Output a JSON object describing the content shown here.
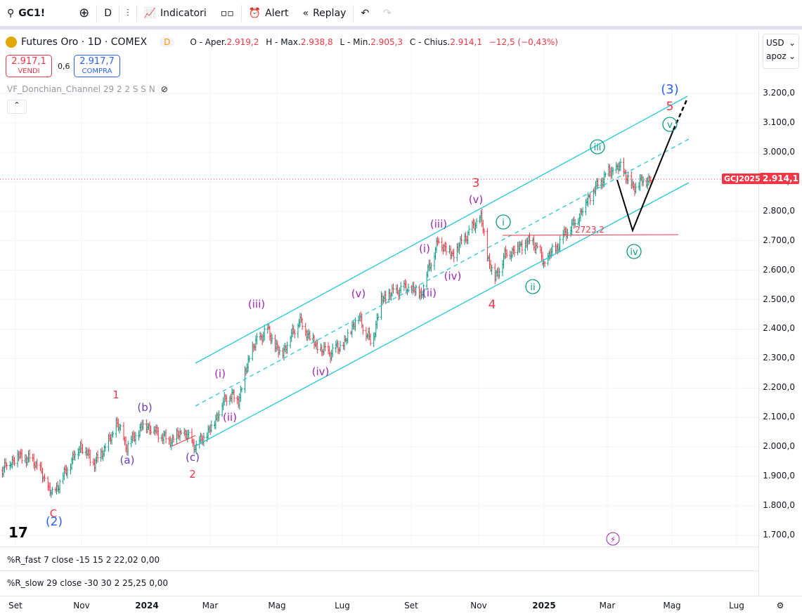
{
  "toolbar": {
    "symbol": "GC1!",
    "interval": "D",
    "indicators": "Indicatori",
    "alert": "Alert",
    "replay": "Replay"
  },
  "legend": {
    "title": "Futures Oro · 1D · COMEX",
    "badge": "D",
    "open_label": "O - Aper.",
    "open": "2.919,2",
    "high_label": "H - Max.",
    "high": "2.938,8",
    "low_label": "L - Min.",
    "low": "2.905,3",
    "close_label": "C - Chius.",
    "close": "2.914,1",
    "change": "−12,5 (−0,43%)"
  },
  "trade": {
    "sell_price": "2.917,1",
    "sell_label": "VENDI",
    "spread": "0,6",
    "buy_price": "2.917,7",
    "buy_label": "COMPRA"
  },
  "indicator": "VF_Donchian_Channel 29 2 2 S S N",
  "axis": {
    "currency": "USD",
    "scale": "apoz",
    "ticks": [
      "3.200,0",
      "3.100,0",
      "3.000,0",
      "2.900,0",
      "2.800,0",
      "2.700,0",
      "2.600,0",
      "2.500,0",
      "2.400,0",
      "2.300,0",
      "2.200,0",
      "2.100,0",
      "2.000,0",
      "1.900,0",
      "1.800,0",
      "1.700,0"
    ],
    "last_symbol": "GCJ2025",
    "last_price": "2.914,1"
  },
  "panes": [
    {
      "label": "%R_fast 7 close -15 15 2",
      "v1": "22,02",
      "v2": "0,00"
    },
    {
      "label": "%R_slow 29 close -30 30 2",
      "v1": "25,25",
      "v2": "0,00"
    }
  ],
  "time_labels": [
    "Set",
    "Nov",
    "2024",
    "Mar",
    "Mag",
    "Lug",
    "Set",
    "Nov",
    "2025",
    "Mar",
    "Mag",
    "Lug"
  ],
  "level_label": "2723,2",
  "waves": {
    "C": "C",
    "w2": "(2)",
    "w1": "1",
    "a": "(a)",
    "b": "(b)",
    "c": "(c)",
    "w2b": "2",
    "i1": "(i)",
    "ii1": "(ii)",
    "iii1": "(iii)",
    "iv1": "(iv)",
    "v1": "(v)",
    "i2": "(i)",
    "ii2": "(ii)",
    "iii2": "(iii)",
    "iv2": "(iv)",
    "v2": "(v)",
    "w3": "3",
    "w4": "4",
    "ti": "i",
    "tii": "ii",
    "tiii": "iii",
    "tiv": "iv",
    "tv": "v",
    "w5": "5",
    "W3": "(3)"
  },
  "colors": {
    "up": "#089981",
    "down": "#f23645",
    "channel": "#26c6da",
    "wave_red": "#f23645",
    "wave_purple": "#9c27b0",
    "wave_teal": "#089981",
    "wave_blue": "#2962ff"
  },
  "chart_data": {
    "type": "ohlc",
    "title": "Futures Oro · 1D · COMEX",
    "x_unit": "days from 2023-09-01",
    "ylim": [
      1700,
      3200
    ],
    "x": [
      -14,
      2,
      18,
      34,
      44,
      60,
      73,
      90,
      93,
      103,
      119,
      142,
      155,
      167,
      180,
      196,
      206,
      218,
      232,
      245,
      262,
      280,
      291,
      304,
      316,
      329,
      338,
      352,
      361,
      375,
      381,
      391,
      404,
      417,
      430,
      436,
      443,
      452,
      465,
      478,
      489,
      495,
      501,
      506,
      517,
      530,
      547,
      560,
      570,
      578,
      588
    ],
    "close": [
      1920,
      1970,
      1950,
      1836,
      1900,
      2007,
      1943,
      2040,
      2086,
      2000,
      2080,
      2020,
      2050,
      2000,
      2060,
      2180,
      2160,
      2330,
      2400,
      2310,
      2430,
      2330,
      2320,
      2350,
      2450,
      2350,
      2500,
      2530,
      2540,
      2520,
      2600,
      2700,
      2650,
      2720,
      2780,
      2650,
      2570,
      2650,
      2680,
      2700,
      2620,
      2660,
      2680,
      2720,
      2760,
      2850,
      2930,
      2950,
      2880,
      2900,
      2914
    ]
  }
}
